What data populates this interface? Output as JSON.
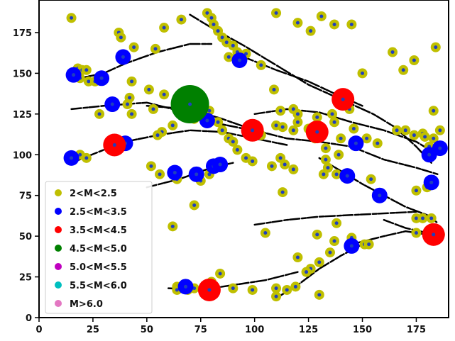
{
  "chart_data": {
    "type": "scatter",
    "title": "",
    "xlabel": "",
    "ylabel": "",
    "xlim": [
      0,
      190
    ],
    "ylim": [
      0,
      195
    ],
    "xticks": [
      0,
      25,
      50,
      75,
      100,
      125,
      150,
      175
    ],
    "yticks": [
      0,
      25,
      50,
      75,
      100,
      125,
      150,
      175
    ],
    "grid": false,
    "legend_position": "lower-left",
    "legend": [
      {
        "label": "2<M<2.5",
        "color": "#bfbf00"
      },
      {
        "label": "2.5<M<3.5",
        "color": "#0000ff"
      },
      {
        "label": "3.5<M<4.5",
        "color": "#ff0000"
      },
      {
        "label": "4.5<M<5.0",
        "color": "#008000"
      },
      {
        "label": "5.0<M<5.5",
        "color": "#bf00bf"
      },
      {
        "label": "5.5<M<6.0",
        "color": "#00bfbf"
      },
      {
        "label": "M>6.0",
        "color": "#e377c2"
      }
    ],
    "series": [
      {
        "class": "2<M<2.5",
        "color": "#bfbf00",
        "points": [
          [
            15,
            184
          ],
          [
            37,
            175
          ],
          [
            38,
            172
          ],
          [
            58,
            178
          ],
          [
            44,
            166
          ],
          [
            54,
            165
          ],
          [
            66,
            183
          ],
          [
            78,
            187
          ],
          [
            80,
            184
          ],
          [
            81,
            180
          ],
          [
            83,
            176
          ],
          [
            85,
            172
          ],
          [
            87,
            169
          ],
          [
            90,
            167
          ],
          [
            92,
            163
          ],
          [
            88,
            160
          ],
          [
            96,
            162
          ],
          [
            103,
            155
          ],
          [
            109,
            140
          ],
          [
            110,
            187
          ],
          [
            120,
            181
          ],
          [
            126,
            176
          ],
          [
            131,
            185
          ],
          [
            137,
            180
          ],
          [
            145,
            180
          ],
          [
            150,
            150
          ],
          [
            164,
            163
          ],
          [
            169,
            152
          ],
          [
            174,
            158
          ],
          [
            184,
            166
          ],
          [
            183,
            127
          ],
          [
            186,
            115
          ],
          [
            178,
            113
          ],
          [
            183,
            110
          ],
          [
            18,
            153
          ],
          [
            20,
            152
          ],
          [
            22,
            152
          ],
          [
            19,
            147
          ],
          [
            23,
            145
          ],
          [
            26,
            145
          ],
          [
            28,
            148
          ],
          [
            43,
            145
          ],
          [
            42,
            135
          ],
          [
            51,
            140
          ],
          [
            58,
            137
          ],
          [
            41,
            131
          ],
          [
            43,
            125
          ],
          [
            28,
            125
          ],
          [
            53,
            128
          ],
          [
            65,
            128
          ],
          [
            79,
            127
          ],
          [
            72,
            122
          ],
          [
            62,
            118
          ],
          [
            57,
            114
          ],
          [
            55,
            112
          ],
          [
            83,
            120
          ],
          [
            85,
            115
          ],
          [
            97,
            115
          ],
          [
            103,
            112
          ],
          [
            110,
            118
          ],
          [
            112,
            127
          ],
          [
            118,
            128
          ],
          [
            120,
            125
          ],
          [
            113,
            117
          ],
          [
            118,
            115
          ],
          [
            120,
            120
          ],
          [
            125,
            116
          ],
          [
            129,
            123
          ],
          [
            136,
            125
          ],
          [
            137,
            120
          ],
          [
            144,
            128
          ],
          [
            146,
            116
          ],
          [
            152,
            110
          ],
          [
            157,
            107
          ],
          [
            166,
            115
          ],
          [
            170,
            115
          ],
          [
            174,
            112
          ],
          [
            179,
            111
          ],
          [
            181,
            105
          ],
          [
            88,
            110
          ],
          [
            90,
            108
          ],
          [
            92,
            103
          ],
          [
            96,
            98
          ],
          [
            99,
            96
          ],
          [
            108,
            93
          ],
          [
            114,
            94
          ],
          [
            118,
            91
          ],
          [
            112,
            98
          ],
          [
            128,
            110
          ],
          [
            133,
            97
          ],
          [
            134,
            92
          ],
          [
            138,
            88
          ],
          [
            132,
            88
          ],
          [
            139,
            100
          ],
          [
            146,
            106
          ],
          [
            133,
            104
          ],
          [
            140,
            110
          ],
          [
            154,
            85
          ],
          [
            158,
            75
          ],
          [
            175,
            78
          ],
          [
            180,
            80
          ],
          [
            175,
            61
          ],
          [
            178,
            61
          ],
          [
            182,
            61
          ],
          [
            175,
            52
          ],
          [
            186,
            51
          ],
          [
            19,
            100
          ],
          [
            22,
            98
          ],
          [
            15,
            98
          ],
          [
            52,
            93
          ],
          [
            56,
            88
          ],
          [
            64,
            85
          ],
          [
            75,
            84
          ],
          [
            79,
            88
          ],
          [
            113,
            77
          ],
          [
            72,
            69
          ],
          [
            62,
            56
          ],
          [
            105,
            52
          ],
          [
            129,
            51
          ],
          [
            138,
            58
          ],
          [
            145,
            49
          ],
          [
            151,
            45
          ],
          [
            153,
            45
          ],
          [
            137,
            47
          ],
          [
            130,
            34
          ],
          [
            126,
            30
          ],
          [
            124,
            28
          ],
          [
            135,
            40
          ],
          [
            130,
            14
          ],
          [
            84,
            27
          ],
          [
            80,
            22
          ],
          [
            64,
            19
          ],
          [
            64,
            17
          ],
          [
            69,
            17
          ],
          [
            72,
            18
          ],
          [
            90,
            18
          ],
          [
            99,
            17
          ],
          [
            110,
            13
          ],
          [
            115,
            17
          ],
          [
            119,
            19
          ],
          [
            110,
            18
          ],
          [
            120,
            37
          ]
        ]
      },
      {
        "class": "2.5<M<3.5",
        "color": "#0000ff",
        "points": [
          [
            16,
            149
          ],
          [
            29,
            147
          ],
          [
            39,
            160
          ],
          [
            34,
            131
          ],
          [
            93,
            158
          ],
          [
            15,
            98
          ],
          [
            40,
            107
          ],
          [
            63,
            89
          ],
          [
            73,
            88
          ],
          [
            81,
            93
          ],
          [
            84,
            94
          ],
          [
            143,
            87
          ],
          [
            158,
            75
          ],
          [
            182,
            83
          ],
          [
            186,
            104
          ],
          [
            181,
            100
          ],
          [
            145,
            44
          ],
          [
            68,
            19
          ],
          [
            78,
            121
          ],
          [
            99,
            115
          ],
          [
            128,
            114
          ],
          [
            141,
            134
          ],
          [
            147,
            107
          ]
        ]
      },
      {
        "class": "3.5<M<4.5",
        "color": "#ff0000",
        "points": [
          [
            35,
            106
          ],
          [
            99,
            115
          ],
          [
            129,
            114
          ],
          [
            141,
            134
          ],
          [
            183,
            51
          ],
          [
            79,
            17
          ]
        ]
      },
      {
        "class": "4.5<M<5.0",
        "color": "#008000",
        "points": [
          [
            70,
            131
          ]
        ]
      }
    ],
    "traces": [
      [
        [
          15,
          146
        ],
        [
          30,
          150
        ],
        [
          40,
          156
        ],
        [
          55,
          163
        ],
        [
          70,
          168
        ],
        [
          80,
          168
        ]
      ],
      [
        [
          15,
          128
        ],
        [
          30,
          130
        ],
        [
          50,
          132
        ],
        [
          65,
          127
        ],
        [
          80,
          120
        ],
        [
          95,
          116
        ]
      ],
      [
        [
          50,
          130
        ],
        [
          70,
          128
        ],
        [
          85,
          122
        ],
        [
          100,
          115
        ],
        [
          115,
          110
        ],
        [
          130,
          108
        ],
        [
          145,
          105
        ],
        [
          160,
          97
        ],
        [
          175,
          92
        ],
        [
          185,
          88
        ]
      ],
      [
        [
          70,
          186
        ],
        [
          80,
          178
        ],
        [
          95,
          167
        ],
        [
          110,
          155
        ],
        [
          125,
          143
        ],
        [
          140,
          134
        ],
        [
          155,
          125
        ],
        [
          165,
          117
        ],
        [
          175,
          105
        ],
        [
          182,
          95
        ]
      ],
      [
        [
          95,
          160
        ],
        [
          110,
          152
        ],
        [
          125,
          145
        ],
        [
          138,
          137
        ],
        [
          150,
          130
        ]
      ],
      [
        [
          15,
          95
        ],
        [
          30,
          103
        ],
        [
          40,
          108
        ],
        [
          55,
          112
        ],
        [
          70,
          115
        ],
        [
          85,
          114
        ],
        [
          100,
          110
        ],
        [
          115,
          106
        ]
      ],
      [
        [
          50,
          80
        ],
        [
          65,
          85
        ],
        [
          80,
          92
        ],
        [
          90,
          95
        ]
      ],
      [
        [
          100,
          125
        ],
        [
          115,
          128
        ],
        [
          130,
          126
        ],
        [
          145,
          120
        ],
        [
          160,
          115
        ],
        [
          175,
          108
        ],
        [
          185,
          100
        ]
      ],
      [
        [
          130,
          98
        ],
        [
          140,
          90
        ],
        [
          150,
          82
        ],
        [
          160,
          75
        ],
        [
          170,
          68
        ],
        [
          180,
          63
        ],
        [
          185,
          58
        ]
      ],
      [
        [
          100,
          57
        ],
        [
          115,
          60
        ],
        [
          130,
          62
        ],
        [
          145,
          63
        ],
        [
          160,
          64
        ],
        [
          175,
          65
        ]
      ],
      [
        [
          145,
          45
        ],
        [
          160,
          50
        ],
        [
          170,
          53
        ],
        [
          185,
          50
        ]
      ],
      [
        [
          110,
          12
        ],
        [
          120,
          20
        ],
        [
          130,
          30
        ],
        [
          140,
          38
        ],
        [
          150,
          45
        ]
      ],
      [
        [
          60,
          18
        ],
        [
          75,
          17
        ],
        [
          90,
          20
        ],
        [
          105,
          23
        ],
        [
          120,
          28
        ]
      ],
      [
        [
          160,
          60
        ],
        [
          170,
          55
        ],
        [
          180,
          52
        ]
      ]
    ]
  }
}
